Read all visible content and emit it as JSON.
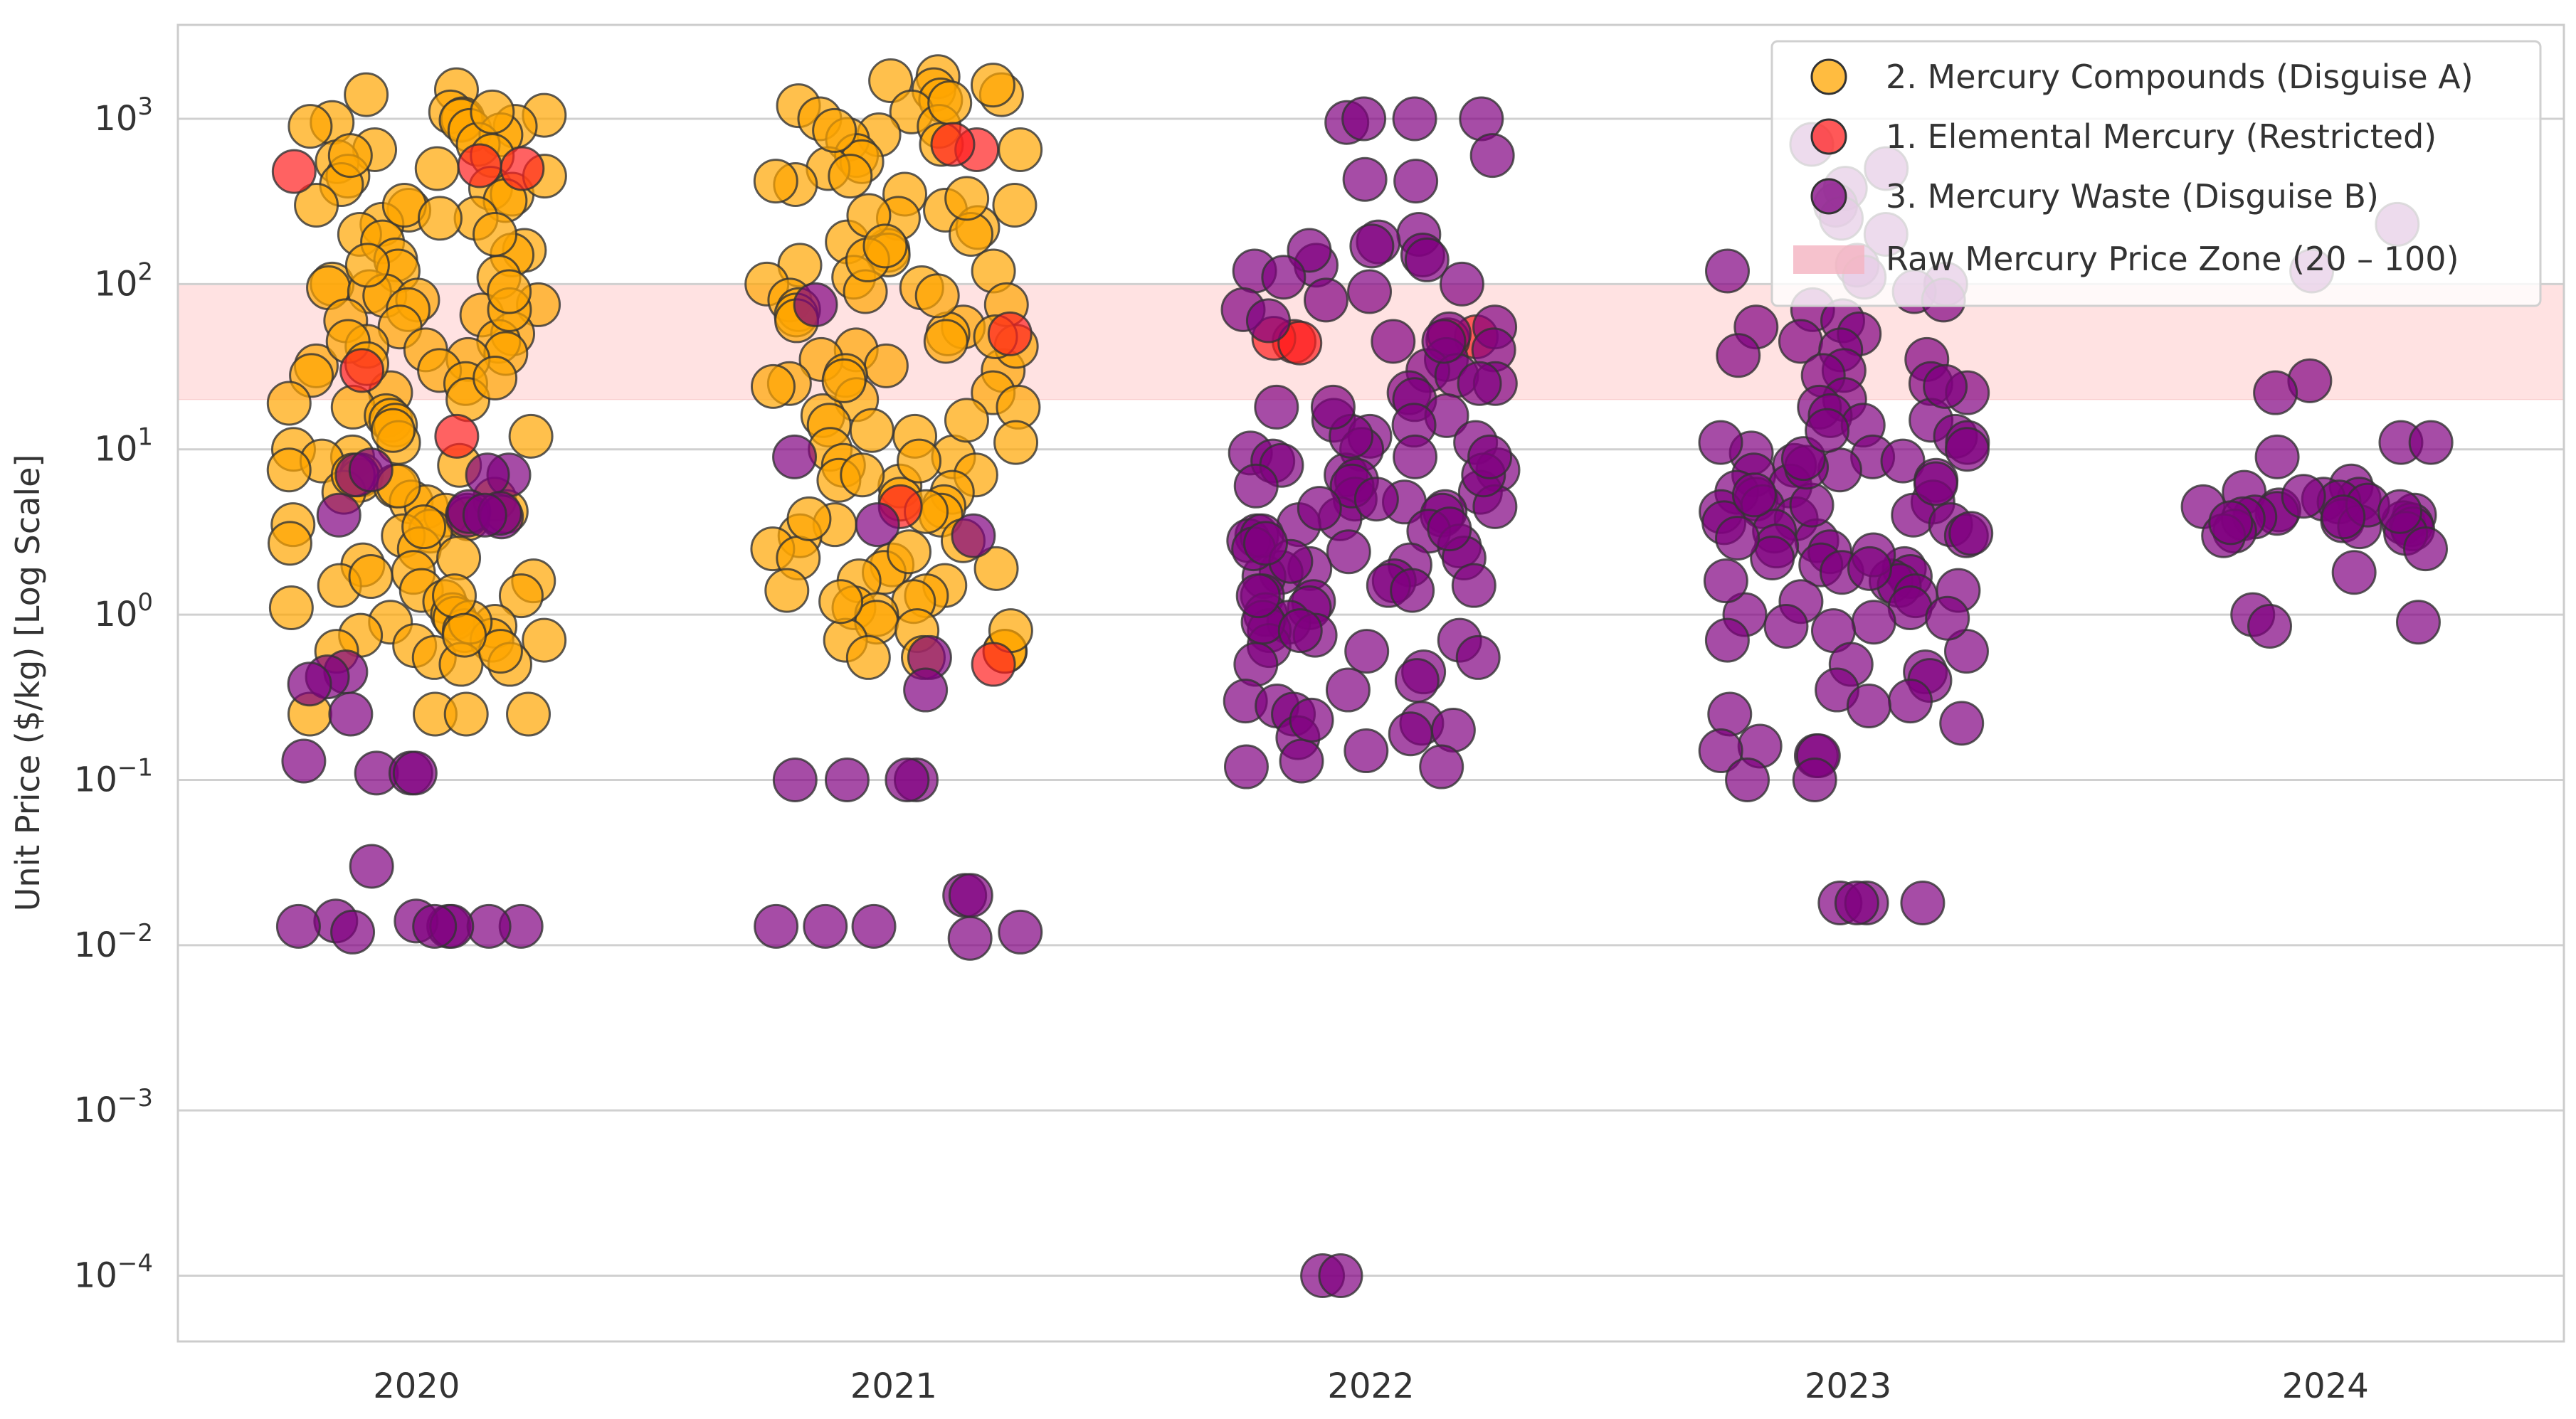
{
  "chart_data": {
    "type": "scatter",
    "subtype": "strip",
    "title": "",
    "xlabel": "",
    "ylabel": "Unit Price ($/kg) [Log Scale]",
    "yscale": "log",
    "ylim": [
      4e-05,
      3700
    ],
    "categories": [
      "2020",
      "2021",
      "2022",
      "2023",
      "2024"
    ],
    "yticks": [
      {
        "value": 1000,
        "base": "10",
        "exp": "3"
      },
      {
        "value": 100,
        "base": "10",
        "exp": "2"
      },
      {
        "value": 10,
        "base": "10",
        "exp": "1"
      },
      {
        "value": 1,
        "base": "10",
        "exp": "0"
      },
      {
        "value": 0.1,
        "base": "10",
        "exp": "−1"
      },
      {
        "value": 0.01,
        "base": "10",
        "exp": "−2"
      },
      {
        "value": 0.001,
        "base": "10",
        "exp": "−3"
      },
      {
        "value": 0.0001,
        "base": "10",
        "exp": "−4"
      }
    ],
    "grid": true,
    "legend_position": "top-right",
    "band": {
      "label": "Raw Mercury Price Zone (20 – 100)",
      "from": 20,
      "to": 100,
      "color": "#f9b3b3"
    },
    "series": [
      {
        "name": "2. Mercury Compounds (Disguise A)",
        "color": "#ffa500",
        "values": {
          "2020": [
            1500,
            1400,
            1100,
            1050,
            1000,
            980,
            950,
            900,
            850,
            800,
            700,
            650,
            600,
            550,
            500,
            450,
            400,
            380,
            350,
            320,
            300,
            280,
            250,
            230,
            200,
            180,
            160,
            150,
            140,
            120,
            110,
            100,
            95,
            90,
            85,
            80,
            75,
            70,
            65,
            60,
            55,
            50,
            45,
            42,
            40,
            38,
            35,
            32,
            30,
            28,
            25,
            22,
            20,
            18,
            16,
            15,
            14,
            12,
            11,
            10,
            9,
            8.5,
            8,
            7.5,
            7,
            6.5,
            6,
            5.5,
            5,
            4.8,
            4.5,
            4.2,
            4,
            3.8,
            3.5,
            3.2,
            3,
            2.5,
            2.2,
            2,
            1.8,
            1.6,
            1.5,
            1.4,
            1.3,
            1.2,
            1.1,
            1,
            0.95,
            0.9,
            0.85,
            0.8,
            0.75,
            0.7,
            0.7,
            0.65,
            0.6,
            0.55,
            0.5,
            0.5,
            0.25,
            0.25,
            0.25,
            0.25,
            900,
            600,
            300,
            200,
            130,
            70,
            45,
            27,
            13,
            6,
            2.7,
            1.7,
            0.9,
            0.6,
            1100,
            450,
            250,
            90,
            33,
            19,
            7,
            3.4,
            1.3,
            0.75
          ],
          "2021": [
            1800,
            1700,
            1500,
            1400,
            1300,
            1200,
            1100,
            1000,
            900,
            800,
            750,
            700,
            600,
            550,
            500,
            450,
            400,
            350,
            300,
            280,
            250,
            220,
            200,
            180,
            160,
            150,
            130,
            120,
            110,
            100,
            95,
            90,
            80,
            70,
            65,
            60,
            55,
            50,
            45,
            40,
            35,
            32,
            30,
            28,
            25,
            22,
            20,
            18,
            16,
            14,
            12,
            11,
            10,
            9,
            8,
            7,
            6.5,
            6,
            5.5,
            5,
            4.5,
            4,
            3.5,
            3,
            2.8,
            2.5,
            2.2,
            2,
            1.8,
            1.6,
            1.5,
            1.3,
            1.2,
            1.1,
            1,
            0.9,
            0.8,
            0.7,
            0.6,
            0.6,
            0.55,
            0.55,
            1600,
            850,
            420,
            260,
            140,
            75,
            42,
            24,
            13,
            7,
            3.8,
            1.9,
            1.2,
            0.8,
            1250,
            650,
            330,
            170,
            85,
            48,
            26,
            15,
            8.5,
            4.2,
            2.4,
            1.4
          ]
        }
      },
      {
        "name": "1. Elemental Mercury (Restricted)",
        "color": "#ff2020",
        "values": {
          "2020": [
            500,
            520,
            480,
            12,
            30
          ],
          "2021": [
            650,
            700,
            50,
            4.5,
            0.5
          ],
          "2022": [
            45,
            47,
            44,
            48,
            46
          ],
          "2023": [],
          "2024": []
        }
      },
      {
        "name": "3. Mercury Waste (Disguise B)",
        "color": "#800080",
        "values": {
          "2020": [
            7,
            7.5,
            7,
            7,
            4,
            4.2,
            4,
            3.9,
            4.1,
            4,
            0.45,
            0.42,
            0.38,
            0.25,
            0.11,
            0.11,
            0.11,
            0.13,
            0.03,
            0.013,
            0.013,
            0.014,
            0.013,
            0.012,
            0.013,
            0.014,
            0.013,
            0.013
          ],
          "2021": [
            9,
            3,
            3.5,
            0.55,
            0.35,
            0.1,
            0.1,
            0.1,
            0.1,
            0.02,
            0.013,
            0.013,
            0.012,
            0.011,
            0.02,
            0.013,
            75
          ],
          "2022": [
            1000,
            1000,
            950,
            1000,
            600,
            420,
            430,
            200,
            180,
            170,
            150,
            140,
            130,
            160,
            120,
            110,
            100,
            90,
            80,
            70,
            60,
            55,
            50,
            45,
            40,
            35,
            30,
            28,
            25,
            22,
            20,
            18,
            16,
            15,
            14,
            12,
            11,
            10,
            9.5,
            9,
            8.5,
            8,
            7.5,
            7,
            6.5,
            6,
            5.5,
            5,
            4.8,
            4.5,
            4.2,
            4,
            3.8,
            3.5,
            3.2,
            3,
            2.8,
            2.6,
            2.4,
            2.2,
            2,
            1.9,
            1.8,
            1.7,
            1.6,
            1.5,
            1.4,
            1.3,
            1.2,
            1.1,
            1,
            0.9,
            0.8,
            0.75,
            0.7,
            0.65,
            0.6,
            0.55,
            0.5,
            0.45,
            0.4,
            0.35,
            0.3,
            0.28,
            0.25,
            0.22,
            0.2,
            0.19,
            0.18,
            0.15,
            0.13,
            0.12,
            0.12,
            0.23,
            0.0001,
            0.0001,
            12,
            6,
            3,
            2.5,
            1.5,
            0.9,
            5,
            7,
            3.3,
            2.1,
            1.3,
            0.8,
            25,
            45,
            18,
            9,
            4.4,
            2.7
          ],
          "2023": [
            700,
            500,
            380,
            300,
            250,
            200,
            130,
            120,
            110,
            100,
            90,
            80,
            70,
            60,
            55,
            50,
            45,
            40,
            35,
            30,
            28,
            25,
            22,
            20,
            18,
            16,
            15,
            14,
            12,
            11,
            10,
            9.5,
            9,
            8.5,
            8,
            7.5,
            7,
            6.5,
            6,
            5.5,
            5,
            4.8,
            4.5,
            4.2,
            4,
            3.8,
            3.5,
            3.2,
            3,
            2.8,
            2.6,
            2.4,
            2.2,
            2,
            1.9,
            1.8,
            1.7,
            1.6,
            1.5,
            1.4,
            1.3,
            1.2,
            1.1,
            1,
            0.9,
            0.85,
            0.8,
            0.7,
            0.6,
            0.5,
            0.45,
            0.4,
            0.35,
            0.3,
            0.28,
            0.25,
            0.22,
            0.16,
            0.15,
            0.14,
            0.14,
            0.1,
            0.1,
            0.018,
            0.018,
            0.018,
            0.018,
            11,
            6.2,
            3.6,
            2.3,
            1.6,
            4.6,
            7.8,
            2.9,
            5.3,
            8.8,
            3.1,
            1.9,
            0.95,
            13,
            24,
            37
          ],
          "2024": [
            230,
            120,
            26,
            22,
            11,
            11,
            9,
            6,
            5.5,
            5,
            5,
            4.8,
            4.5,
            4.3,
            4.1,
            4,
            3.9,
            3.8,
            3.7,
            3.6,
            3.5,
            3.4,
            3.3,
            3.2,
            3.1,
            3,
            4.6,
            4.2,
            3.6,
            3.9,
            5.2,
            2.5,
            1.8,
            1,
            0.9,
            0.85
          ]
        }
      }
    ]
  }
}
